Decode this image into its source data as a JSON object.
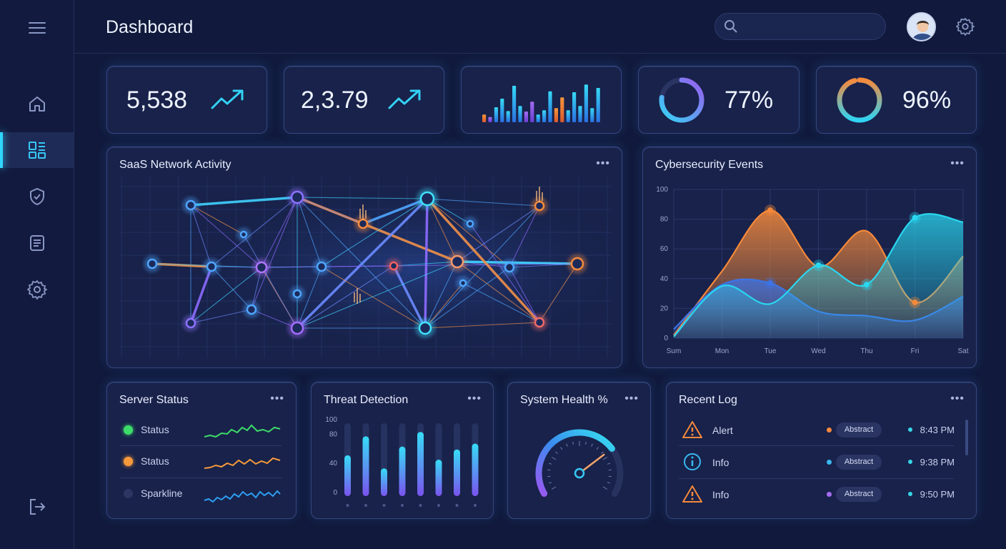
{
  "header": {
    "title": "Dashboard",
    "search_placeholder": ""
  },
  "sidebar": {
    "items": [
      "menu-icon",
      "home-icon",
      "dashboard-icon",
      "shield-icon",
      "document-icon",
      "gear-icon",
      "logout-icon"
    ],
    "active": "dashboard-icon"
  },
  "stats": [
    {
      "value": "5,538",
      "icon": "trend-up-icon"
    },
    {
      "value": "2,3.79",
      "icon": "trend-up-icon"
    },
    {
      "value": "",
      "icon": "mini-bar-chart"
    },
    {
      "value": "77%",
      "level": 0.77
    },
    {
      "value": "96%",
      "level": 0.96
    }
  ],
  "network": {
    "title": "SaaS Network Activity"
  },
  "events": {
    "title": "Cybersecurity Events"
  },
  "server": {
    "title": "Server Status",
    "rows": [
      {
        "label": "Status",
        "color": "#3ddc6a"
      },
      {
        "label": "Status",
        "color": "#f79a3b"
      },
      {
        "label": "Sparkline",
        "color": "#2b3762"
      }
    ]
  },
  "threat": {
    "title": "Threat Detection"
  },
  "health": {
    "title": "System Health %",
    "level": 0.72
  },
  "log": {
    "title": "Recent Log",
    "rows": [
      {
        "label": "Alert",
        "tag": "Abstract",
        "time": "8:43 PM",
        "icon": "warning-icon",
        "color": "#f5883b"
      },
      {
        "label": "Info",
        "tag": "Abstract",
        "time": "9:38 PM",
        "icon": "info-icon",
        "color": "#39b8f0"
      },
      {
        "label": "Info",
        "tag": "Abstract",
        "time": "9:50 PM",
        "icon": "warning-icon",
        "color": "#a56cf0"
      }
    ]
  },
  "chart_data": [
    {
      "type": "area",
      "title": "Cybersecurity Events",
      "categories": [
        "Sum",
        "Mon",
        "Tue",
        "Wed",
        "Thu",
        "Fri",
        "Sat"
      ],
      "ylim": [
        0,
        100
      ],
      "yticks": [
        "0",
        "20",
        "40",
        "60",
        "80",
        "100"
      ],
      "grid": true,
      "series": [
        {
          "color": "#f5893a",
          "values": [
            2,
            45,
            86,
            48,
            72,
            24,
            55
          ]
        },
        {
          "color": "#29d7f0",
          "values": [
            1,
            35,
            23,
            49,
            36,
            81,
            78
          ]
        },
        {
          "color": "#3d74e6",
          "values": [
            6,
            36,
            37,
            18,
            15,
            12,
            28
          ]
        }
      ]
    },
    {
      "type": "bar",
      "title": "Threat Detection",
      "ylim": [
        0,
        100
      ],
      "yticks": [
        "0",
        "40",
        "80",
        "100"
      ],
      "values": [
        56,
        82,
        38,
        68,
        88,
        50,
        64,
        72
      ]
    },
    {
      "type": "bar",
      "title": "",
      "values": [
        18,
        12,
        35,
        55,
        26,
        85,
        38,
        25,
        48,
        18,
        28,
        72,
        33,
        58,
        28,
        70,
        38,
        88,
        33,
        80
      ]
    }
  ]
}
